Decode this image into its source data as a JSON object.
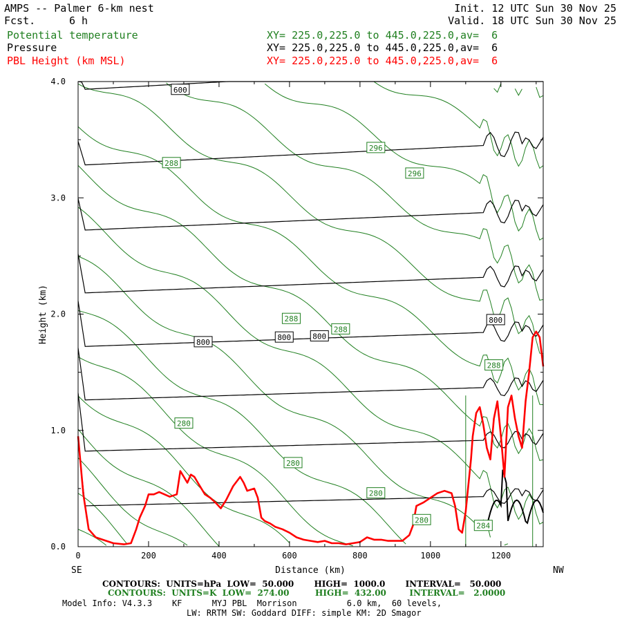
{
  "header": {
    "title": "AMPS -- Palmer 6-km nest",
    "fcst_label": "Fcst.",
    "fcst_value": "6 h",
    "init": "Init. 12 UTC Sun 30 Nov 25",
    "valid": "Valid. 18 UTC Sun 30 Nov 25"
  },
  "fields": [
    {
      "name": "Potential temperature",
      "xy": "XY= 225.0,225.0 to 445.0,225.0,av=  6",
      "color": "#1f7f1f"
    },
    {
      "name": "Pressure",
      "xy": "XY= 225.0,225.0 to 445.0,225.0,av=  6",
      "color": "#000000"
    },
    {
      "name": "PBL Height (km MSL)",
      "xy": "XY= 225.0,225.0 to 445.0,225.0,av=  6",
      "color": "#ff0000"
    }
  ],
  "footer": {
    "contours_black": "CONTOURS:  UNITS=hPa  LOW=  50.000       HIGH=  1000.0       INTERVAL=   50.000",
    "contours_green": "CONTOURS:  UNITS=K  LOW=  274.00         HIGH=  432.00        INTERVAL=   2.0000",
    "model_info": "Model Info: V4.3.3    KF      MYJ PBL  Morrison          6.0 km,  60 levels,",
    "physics": "LW: RRTM SW: Goddard DIFF: simple KM: 2D Smagor"
  },
  "chart_data": {
    "type": "line",
    "title": "AMPS -- Palmer 6-km nest",
    "xlabel": "Distance (km)",
    "ylabel": "Height (km)",
    "xlim": [
      0,
      1320
    ],
    "ylim": [
      0,
      4.0
    ],
    "x_ticks": [
      0,
      200,
      400,
      600,
      800,
      1000,
      1200
    ],
    "x_tick_labels": [
      "0",
      "200",
      "400",
      "600",
      "800",
      "1000",
      "1200"
    ],
    "y_ticks": [
      0,
      1,
      2,
      3,
      4
    ],
    "y_tick_labels": [
      "0.0",
      "1.0",
      "2.0",
      "3.0",
      "4.0"
    ],
    "x_end_labels": {
      "left": "SE",
      "right": "NW"
    },
    "series": [
      {
        "name": "PBL Height (km MSL)",
        "color": "#ff0000",
        "x": [
          0,
          15,
          30,
          50,
          80,
          100,
          130,
          150,
          165,
          175,
          190,
          200,
          215,
          230,
          260,
          280,
          290,
          300,
          310,
          320,
          330,
          340,
          360,
          375,
          390,
          405,
          420,
          440,
          460,
          470,
          480,
          500,
          510,
          520,
          530,
          545,
          560,
          580,
          600,
          620,
          640,
          660,
          680,
          700,
          720,
          740,
          760,
          780,
          800,
          820,
          840,
          860,
          880,
          900,
          920,
          940,
          950,
          960,
          980,
          1000,
          1020,
          1040,
          1060,
          1070,
          1080,
          1090,
          1100,
          1110,
          1115,
          1120,
          1130,
          1140,
          1150,
          1160,
          1170,
          1180,
          1190,
          1200,
          1210,
          1220,
          1230,
          1240,
          1250,
          1260,
          1270,
          1280,
          1290,
          1300,
          1310,
          1320
        ],
        "y": [
          0.95,
          0.45,
          0.15,
          0.08,
          0.05,
          0.03,
          0.02,
          0.03,
          0.15,
          0.25,
          0.35,
          0.45,
          0.45,
          0.47,
          0.43,
          0.45,
          0.65,
          0.6,
          0.55,
          0.62,
          0.6,
          0.55,
          0.45,
          0.42,
          0.38,
          0.33,
          0.4,
          0.52,
          0.6,
          0.55,
          0.48,
          0.5,
          0.42,
          0.25,
          0.22,
          0.2,
          0.17,
          0.15,
          0.12,
          0.08,
          0.06,
          0.05,
          0.04,
          0.05,
          0.03,
          0.03,
          0.02,
          0.03,
          0.04,
          0.08,
          0.06,
          0.06,
          0.05,
          0.05,
          0.05,
          0.1,
          0.18,
          0.35,
          0.38,
          0.42,
          0.46,
          0.48,
          0.46,
          0.35,
          0.15,
          0.12,
          0.3,
          0.6,
          0.75,
          0.95,
          1.15,
          1.2,
          1.05,
          0.85,
          0.75,
          1.1,
          1.25,
          0.95,
          0.6,
          1.2,
          1.3,
          1.1,
          0.95,
          0.85,
          1.25,
          1.5,
          1.8,
          1.85,
          1.8,
          1.55
        ]
      }
    ],
    "pressure_contours": {
      "units": "hPa",
      "low": 50,
      "high": 1000,
      "interval": 50,
      "labeled": [
        {
          "value": 600,
          "x": 290,
          "y": 3.93
        },
        {
          "value": 800,
          "x": 355,
          "y": 1.76
        },
        {
          "value": 800,
          "x": 585,
          "y": 1.8
        },
        {
          "value": 800,
          "x": 685,
          "y": 1.81
        },
        {
          "value": 800,
          "x": 1185,
          "y": 1.95
        }
      ]
    },
    "theta_contours": {
      "units": "K",
      "low": 274,
      "high": 432,
      "interval": 2,
      "labeled": [
        {
          "value": 296,
          "x": 845,
          "y": 3.43
        },
        {
          "value": 296,
          "x": 955,
          "y": 3.21
        },
        {
          "value": 288,
          "x": 265,
          "y": 3.3
        },
        {
          "value": 288,
          "x": 605,
          "y": 1.96
        },
        {
          "value": 288,
          "x": 745,
          "y": 1.87
        },
        {
          "value": 288,
          "x": 1180,
          "y": 1.56
        },
        {
          "value": 280,
          "x": 300,
          "y": 1.06
        },
        {
          "value": 280,
          "x": 610,
          "y": 0.72
        },
        {
          "value": 280,
          "x": 845,
          "y": 0.46
        },
        {
          "value": 280,
          "x": 975,
          "y": 0.23
        },
        {
          "value": 284,
          "x": 1150,
          "y": 0.18
        }
      ]
    }
  }
}
